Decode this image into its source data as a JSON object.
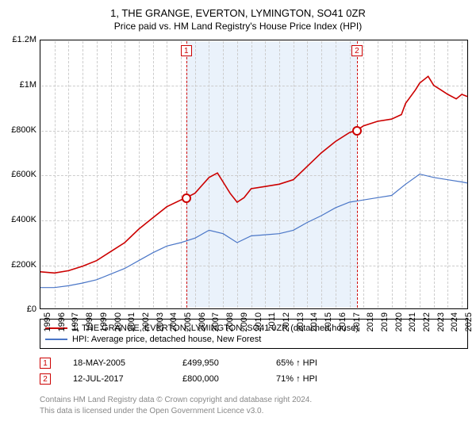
{
  "title_line1": "1, THE GRANGE, EVERTON, LYMINGTON, SO41 0ZR",
  "title_line2": "Price paid vs. HM Land Registry's House Price Index (HPI)",
  "chart": {
    "type": "line",
    "background_color": "#ffffff",
    "grid_color": "#cccccc",
    "border_color": "#000000",
    "xlim": [
      1995,
      2025.5
    ],
    "ylim": [
      0,
      1200000
    ],
    "ytick_step": 200000,
    "xtick_step": 1,
    "shaded_range": [
      2005.38,
      2017.53
    ],
    "shaded_color": "#eaf2fb",
    "yticks": [
      {
        "v": 0,
        "label": "£0"
      },
      {
        "v": 200000,
        "label": "£200K"
      },
      {
        "v": 400000,
        "label": "£400K"
      },
      {
        "v": 600000,
        "label": "£600K"
      },
      {
        "v": 800000,
        "label": "£800K"
      },
      {
        "v": 1000000,
        "label": "£1M"
      },
      {
        "v": 1200000,
        "label": "£1.2M"
      }
    ],
    "xticks": [
      1995,
      1996,
      1997,
      1998,
      1999,
      2000,
      2001,
      2002,
      2003,
      2004,
      2005,
      2006,
      2007,
      2008,
      2009,
      2010,
      2011,
      2012,
      2013,
      2014,
      2015,
      2016,
      2017,
      2018,
      2019,
      2020,
      2021,
      2022,
      2023,
      2024,
      2025
    ],
    "series": [
      {
        "name": "property",
        "label": "1, THE GRANGE, EVERTON, LYMINGTON, SO41 0ZR (detached house)",
        "color": "#cc0000",
        "line_width": 1.6,
        "points": [
          [
            1995,
            170000
          ],
          [
            1996,
            165000
          ],
          [
            1997,
            175000
          ],
          [
            1998,
            195000
          ],
          [
            1999,
            220000
          ],
          [
            2000,
            260000
          ],
          [
            2001,
            300000
          ],
          [
            2002,
            360000
          ],
          [
            2003,
            410000
          ],
          [
            2004,
            460000
          ],
          [
            2005,
            490000
          ],
          [
            2005.38,
            499950
          ],
          [
            2006,
            520000
          ],
          [
            2007,
            590000
          ],
          [
            2007.6,
            610000
          ],
          [
            2008,
            570000
          ],
          [
            2008.5,
            520000
          ],
          [
            2009,
            480000
          ],
          [
            2009.5,
            500000
          ],
          [
            2010,
            540000
          ],
          [
            2011,
            550000
          ],
          [
            2012,
            560000
          ],
          [
            2013,
            580000
          ],
          [
            2014,
            640000
          ],
          [
            2015,
            700000
          ],
          [
            2016,
            750000
          ],
          [
            2017,
            790000
          ],
          [
            2017.53,
            800000
          ],
          [
            2018,
            820000
          ],
          [
            2019,
            840000
          ],
          [
            2020,
            850000
          ],
          [
            2020.7,
            870000
          ],
          [
            2021,
            920000
          ],
          [
            2021.7,
            980000
          ],
          [
            2022,
            1010000
          ],
          [
            2022.6,
            1040000
          ],
          [
            2023,
            1000000
          ],
          [
            2023.5,
            980000
          ],
          [
            2024,
            960000
          ],
          [
            2024.6,
            940000
          ],
          [
            2025,
            960000
          ],
          [
            2025.4,
            950000
          ]
        ]
      },
      {
        "name": "hpi",
        "label": "HPI: Average price, detached house, New Forest",
        "color": "#4a76c7",
        "line_width": 1.2,
        "points": [
          [
            1995,
            100000
          ],
          [
            1996,
            100000
          ],
          [
            1997,
            108000
          ],
          [
            1998,
            120000
          ],
          [
            1999,
            135000
          ],
          [
            2000,
            160000
          ],
          [
            2001,
            185000
          ],
          [
            2002,
            220000
          ],
          [
            2003,
            255000
          ],
          [
            2004,
            285000
          ],
          [
            2005,
            300000
          ],
          [
            2006,
            320000
          ],
          [
            2007,
            355000
          ],
          [
            2008,
            340000
          ],
          [
            2009,
            300000
          ],
          [
            2010,
            330000
          ],
          [
            2011,
            335000
          ],
          [
            2012,
            340000
          ],
          [
            2013,
            355000
          ],
          [
            2014,
            390000
          ],
          [
            2015,
            420000
          ],
          [
            2016,
            455000
          ],
          [
            2017,
            480000
          ],
          [
            2018,
            490000
          ],
          [
            2019,
            500000
          ],
          [
            2020,
            510000
          ],
          [
            2021,
            560000
          ],
          [
            2022,
            605000
          ],
          [
            2023,
            590000
          ],
          [
            2024,
            580000
          ],
          [
            2025,
            570000
          ],
          [
            2025.4,
            565000
          ]
        ]
      }
    ],
    "sale_markers": [
      {
        "id": "1",
        "x": 2005.38,
        "y": 499950,
        "line_color": "#cc0000"
      },
      {
        "id": "2",
        "x": 2017.53,
        "y": 800000,
        "line_color": "#cc0000"
      }
    ],
    "label_fontsize": 11
  },
  "legend": {
    "items": [
      {
        "color": "#cc0000",
        "text": "1, THE GRANGE, EVERTON, LYMINGTON, SO41 0ZR (detached house)"
      },
      {
        "color": "#4a76c7",
        "text": "HPI: Average price, detached house, New Forest"
      }
    ]
  },
  "sales": [
    {
      "id": "1",
      "date": "18-MAY-2005",
      "price": "£499,950",
      "delta": "65% ↑ HPI"
    },
    {
      "id": "2",
      "date": "12-JUL-2017",
      "price": "£800,000",
      "delta": "71% ↑ HPI"
    }
  ],
  "footnote_line1": "Contains HM Land Registry data © Crown copyright and database right 2024.",
  "footnote_line2": "This data is licensed under the Open Government Licence v3.0."
}
